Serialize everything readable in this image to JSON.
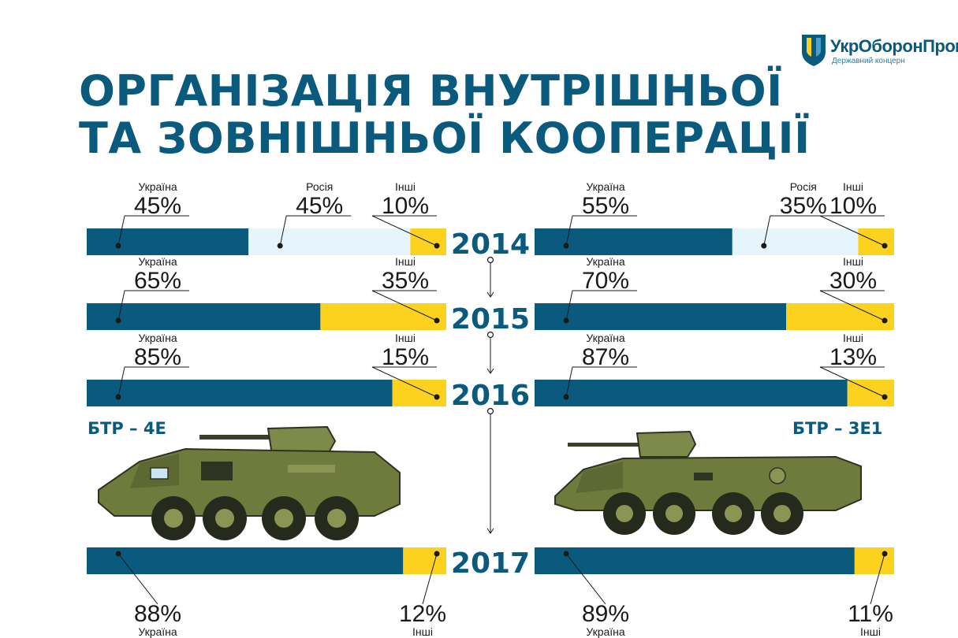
{
  "logo": {
    "brand": "УкрОборонПром",
    "subtitle": "Державний концерн",
    "colors": {
      "blue": "#0a5a7d",
      "yellow": "#fcd21e"
    }
  },
  "title_lines": [
    "ОРГАНІЗАЦІЯ ВНУТРІШНЬОЇ",
    "ТА ЗОВНІШНЬОЇ КООПЕРАЦІЇ"
  ],
  "vehicles": {
    "left": {
      "name": "БТР – 4Е",
      "icon": "apc-btr-4e-illustration"
    },
    "right": {
      "name": "БТР – 3Е1",
      "icon": "apc-btr-3e1-illustration"
    }
  },
  "chart_data": [
    {
      "type": "bar",
      "orientation": "horizontal",
      "stacked": true,
      "normalized_percent": true,
      "categories": [
        "2014",
        "2015",
        "2016",
        "2017"
      ],
      "series": [
        {
          "name": "Україна",
          "values": [
            45,
            65,
            85,
            88
          ]
        },
        {
          "name": "Росія",
          "values": [
            45,
            0,
            0,
            0
          ]
        },
        {
          "name": "Інші",
          "values": [
            10,
            35,
            15,
            12
          ]
        }
      ]
    },
    {
      "type": "bar",
      "orientation": "horizontal",
      "stacked": true,
      "normalized_percent": true,
      "categories": [
        "2014",
        "2015",
        "2016",
        "2017"
      ],
      "series": [
        {
          "name": "Україна",
          "values": [
            55,
            70,
            87,
            89
          ]
        },
        {
          "name": "Росія",
          "values": [
            35,
            0,
            0,
            0
          ]
        },
        {
          "name": "Інші",
          "values": [
            10,
            30,
            13,
            11
          ]
        }
      ]
    }
  ],
  "series_colors": {
    "Україна": "#0a5a7d",
    "Росія": "#e6f4fc",
    "Інші": "#fcd21e"
  },
  "percent_suffix": "%"
}
